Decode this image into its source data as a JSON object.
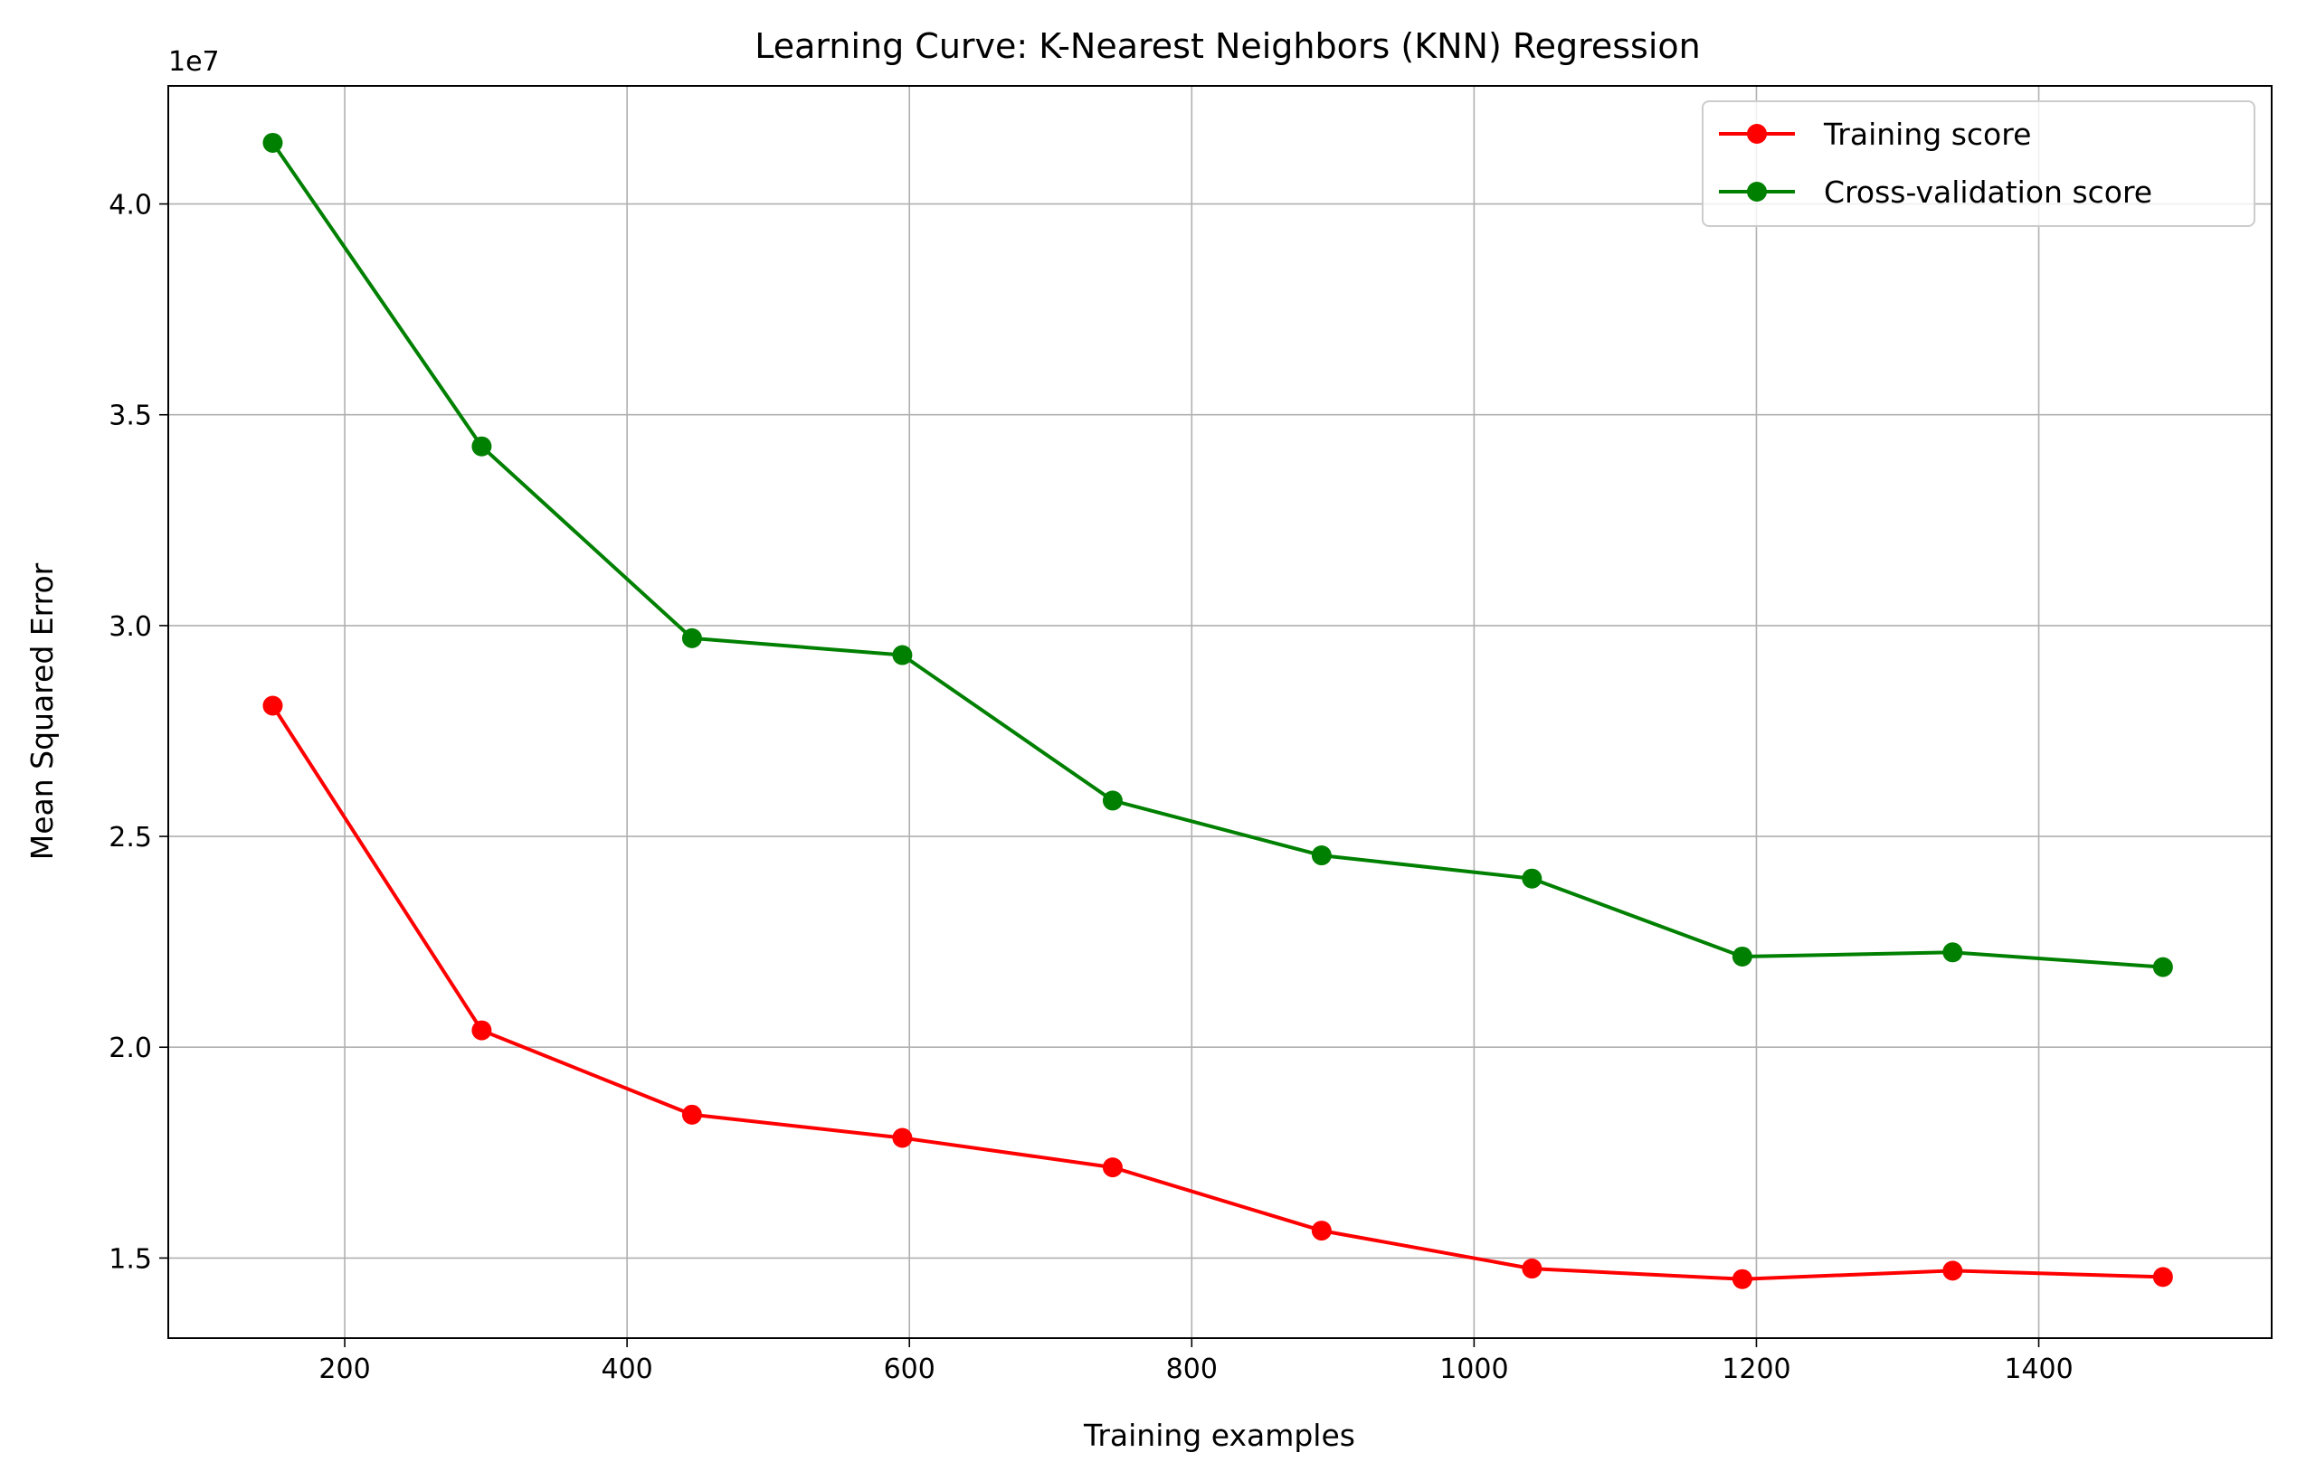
{
  "chart_data": {
    "type": "line",
    "title": "Learning Curve: K-Nearest Neighbors (KNN) Regression",
    "xlabel": "Training examples",
    "ylabel": "Mean Squared Error",
    "y_offset_text": "1e7",
    "y_scale_factor": 10000000,
    "xlim": [
      75,
      1565
    ],
    "ylim": [
      13100000,
      42800000
    ],
    "x_ticks": [
      200,
      400,
      600,
      800,
      1000,
      1200,
      1400
    ],
    "x_tick_labels": [
      "200",
      "400",
      "600",
      "800",
      "1000",
      "1200",
      "1400"
    ],
    "y_ticks": [
      15000000,
      20000000,
      25000000,
      30000000,
      35000000,
      40000000
    ],
    "y_tick_labels": [
      "1.5",
      "2.0",
      "2.5",
      "3.0",
      "3.5",
      "4.0"
    ],
    "grid": true,
    "legend_position": "top-right",
    "x": [
      149,
      297,
      446,
      595,
      744,
      892,
      1041,
      1190,
      1339,
      1488
    ],
    "series": [
      {
        "name": "Training score",
        "color": "#ff0000",
        "values": [
          28100000,
          20400000,
          18400000,
          17850000,
          17150000,
          15650000,
          14750000,
          14500000,
          14700000,
          14550000
        ]
      },
      {
        "name": "Cross-validation score",
        "color": "#008000",
        "values": [
          41450000,
          34250000,
          29700000,
          29300000,
          25850000,
          24550000,
          24000000,
          22150000,
          22250000,
          21900000
        ]
      }
    ]
  }
}
